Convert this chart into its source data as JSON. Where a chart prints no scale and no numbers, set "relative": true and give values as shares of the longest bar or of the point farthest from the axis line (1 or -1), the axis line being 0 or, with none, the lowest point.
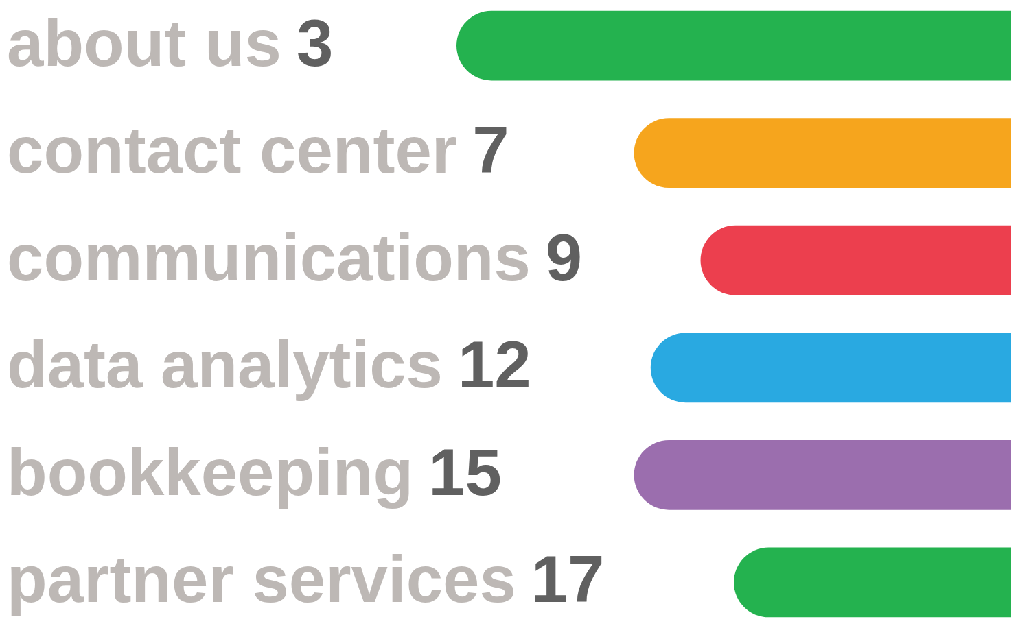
{
  "chart_data": {
    "type": "bar",
    "orientation": "horizontal",
    "relative": true,
    "categories": [
      "about us",
      "contact center",
      "communications",
      "data analytics",
      "bookkeeping",
      "partner services"
    ],
    "values": [
      1,
      0.68,
      0.56,
      0.65,
      0.68,
      0.5
    ],
    "colors": [
      "#24b24f",
      "#f6a51d",
      "#ec3f4e",
      "#29a9e1",
      "#9b6eae",
      "#24b24f"
    ],
    "annotations": [
      "3",
      "7",
      "9",
      "12",
      "15",
      "17"
    ]
  }
}
